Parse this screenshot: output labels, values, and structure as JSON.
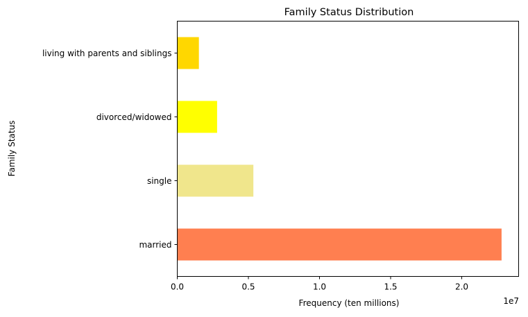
{
  "chart_data": {
    "type": "bar",
    "orientation": "horizontal",
    "title": "Family Status Distribution",
    "xlabel": "Frequency (ten millions)",
    "ylabel": "Family Status",
    "x_offset_label": "1e7",
    "xlim": [
      0,
      24000000
    ],
    "x_ticks": [
      0,
      5000000,
      10000000,
      15000000,
      20000000
    ],
    "x_tick_labels": [
      "0.0",
      "0.5",
      "1.0",
      "1.5",
      "2.0"
    ],
    "grid": false,
    "legend": "none",
    "categories": [
      "married",
      "single",
      "divorced/widowed",
      "living with parents and siblings"
    ],
    "values": [
      22800000,
      5350000,
      2800000,
      1520000
    ],
    "colors": [
      "#ff7f50",
      "#f0e68c",
      "#ffff00",
      "#ffd700"
    ]
  }
}
